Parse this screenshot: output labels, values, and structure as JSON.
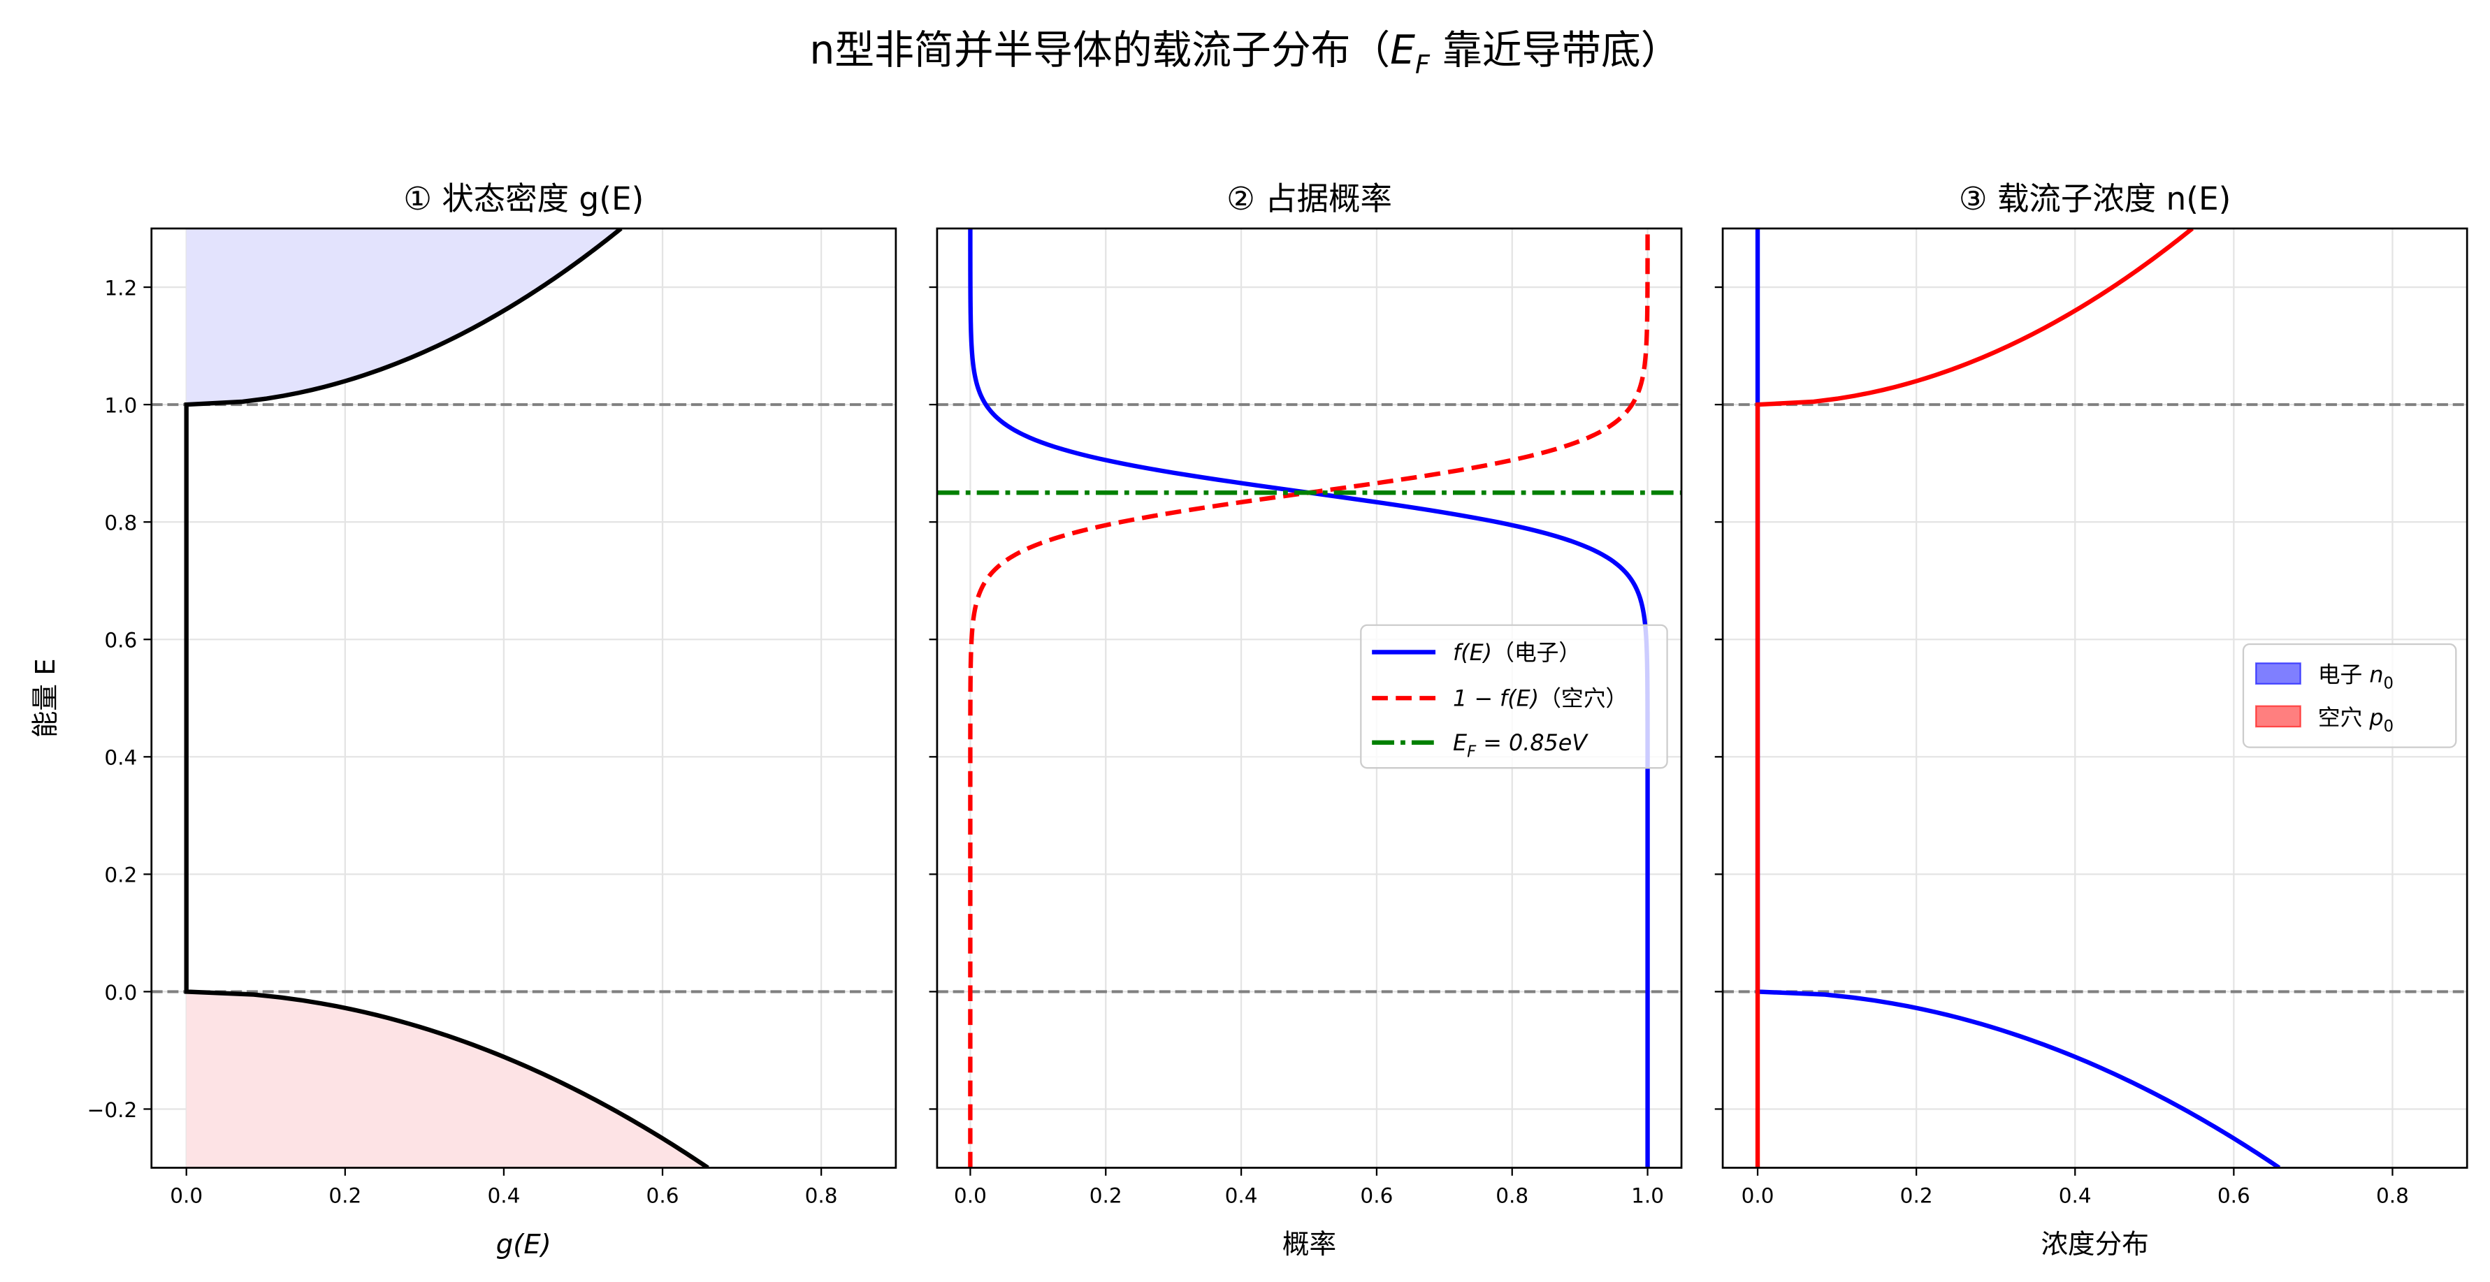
{
  "title": "n型非简并半导体的载流子分布（E_F 靠近导带底）",
  "title_main": "n型非简并半导体的载流子分布（",
  "title_ef": "E",
  "title_ef_sub": "F",
  "title_tail": " 靠近导带底）",
  "colors": {
    "conduction_fill": "#e3e3fd",
    "valence_fill": "#fde3e5",
    "electron": "#0000ff",
    "hole": "#ff0000",
    "fermi": "#008000",
    "band_edge": "#808080",
    "dos": "#000000"
  },
  "chart_data": [
    {
      "type": "line",
      "title": "① 状态密度 g(E)",
      "xlabel": "g(E)",
      "ylabel": "能量 E",
      "xlim": [
        -0.044,
        0.894
      ],
      "ylim": [
        -0.3,
        1.3
      ],
      "xticks": [
        "0.0",
        "0.2",
        "0.4",
        "0.6",
        "0.8"
      ],
      "xtick_values": [
        0,
        0.2,
        0.4,
        0.6,
        0.8
      ],
      "yticks": [
        "−0.2",
        "0.0",
        "0.2",
        "0.4",
        "0.6",
        "0.8",
        "1.0",
        "1.2"
      ],
      "ytick_values": [
        -0.2,
        0,
        0.2,
        0.4,
        0.6,
        0.8,
        1.0,
        1.2
      ],
      "grid": true,
      "series": [
        {
          "desc": "conduction band DOS",
          "formula": "g = sqrt(E - 1.0), E ≥ 1.0, shaded blue"
        },
        {
          "desc": "valence band DOS",
          "formula": "g = 1.2·sqrt(-E), E ≤ 0, shaded pink"
        },
        {
          "desc": "gap",
          "formula": "g = 0 for 0 < E < 1"
        }
      ],
      "hlines": [
        0.0,
        1.0
      ]
    },
    {
      "type": "line",
      "title": "② 占据概率",
      "xlabel": "概率",
      "xlim": [
        -0.049,
        1.05
      ],
      "ylim": [
        -0.3,
        1.3
      ],
      "xticks": [
        "0.0",
        "0.2",
        "0.4",
        "0.6",
        "0.8",
        "1.0"
      ],
      "xtick_values": [
        0,
        0.2,
        0.4,
        0.6,
        0.8,
        1.0
      ],
      "grid": true,
      "fermi_level": 0.85,
      "kT": 0.04,
      "series": [
        {
          "name": "f(E)（电子）",
          "label_fn": "f(E)",
          "label_cn": "（电子）",
          "style": "solid",
          "color": "#0000ff"
        },
        {
          "name": "1 − f(E)（空穴）",
          "label_fn": "1 − f(E)",
          "label_cn": "（空穴）",
          "style": "dashed",
          "color": "#ff0000"
        },
        {
          "name": "E_F = 0.85eV",
          "label_fn": "E",
          "label_sub": "F",
          "label_rest": " = 0.85eV",
          "style": "dashdot",
          "color": "#008000"
        }
      ],
      "legend": "center-right",
      "hlines": [
        0.0,
        1.0
      ]
    },
    {
      "type": "area",
      "title": "③ 载流子浓度 n(E)",
      "xlabel": "浓度分布",
      "xlim": [
        -0.044,
        0.894
      ],
      "ylim": [
        -0.3,
        1.3
      ],
      "xticks": [
        "0.0",
        "0.2",
        "0.4",
        "0.6",
        "0.8"
      ],
      "xtick_values": [
        0,
        0.2,
        0.4,
        0.6,
        0.8
      ],
      "grid": true,
      "series": [
        {
          "name": "电子 n0",
          "label_cn": "电子",
          "label_sym": "n",
          "label_sub": "0",
          "color": "#0000ff"
        },
        {
          "name": "空穴 p0",
          "label_cn": "空穴",
          "label_sym": "p",
          "label_sub": "0",
          "color": "#ff0000"
        }
      ],
      "legend": "center-right",
      "hlines": [
        0.0,
        1.0
      ]
    }
  ]
}
